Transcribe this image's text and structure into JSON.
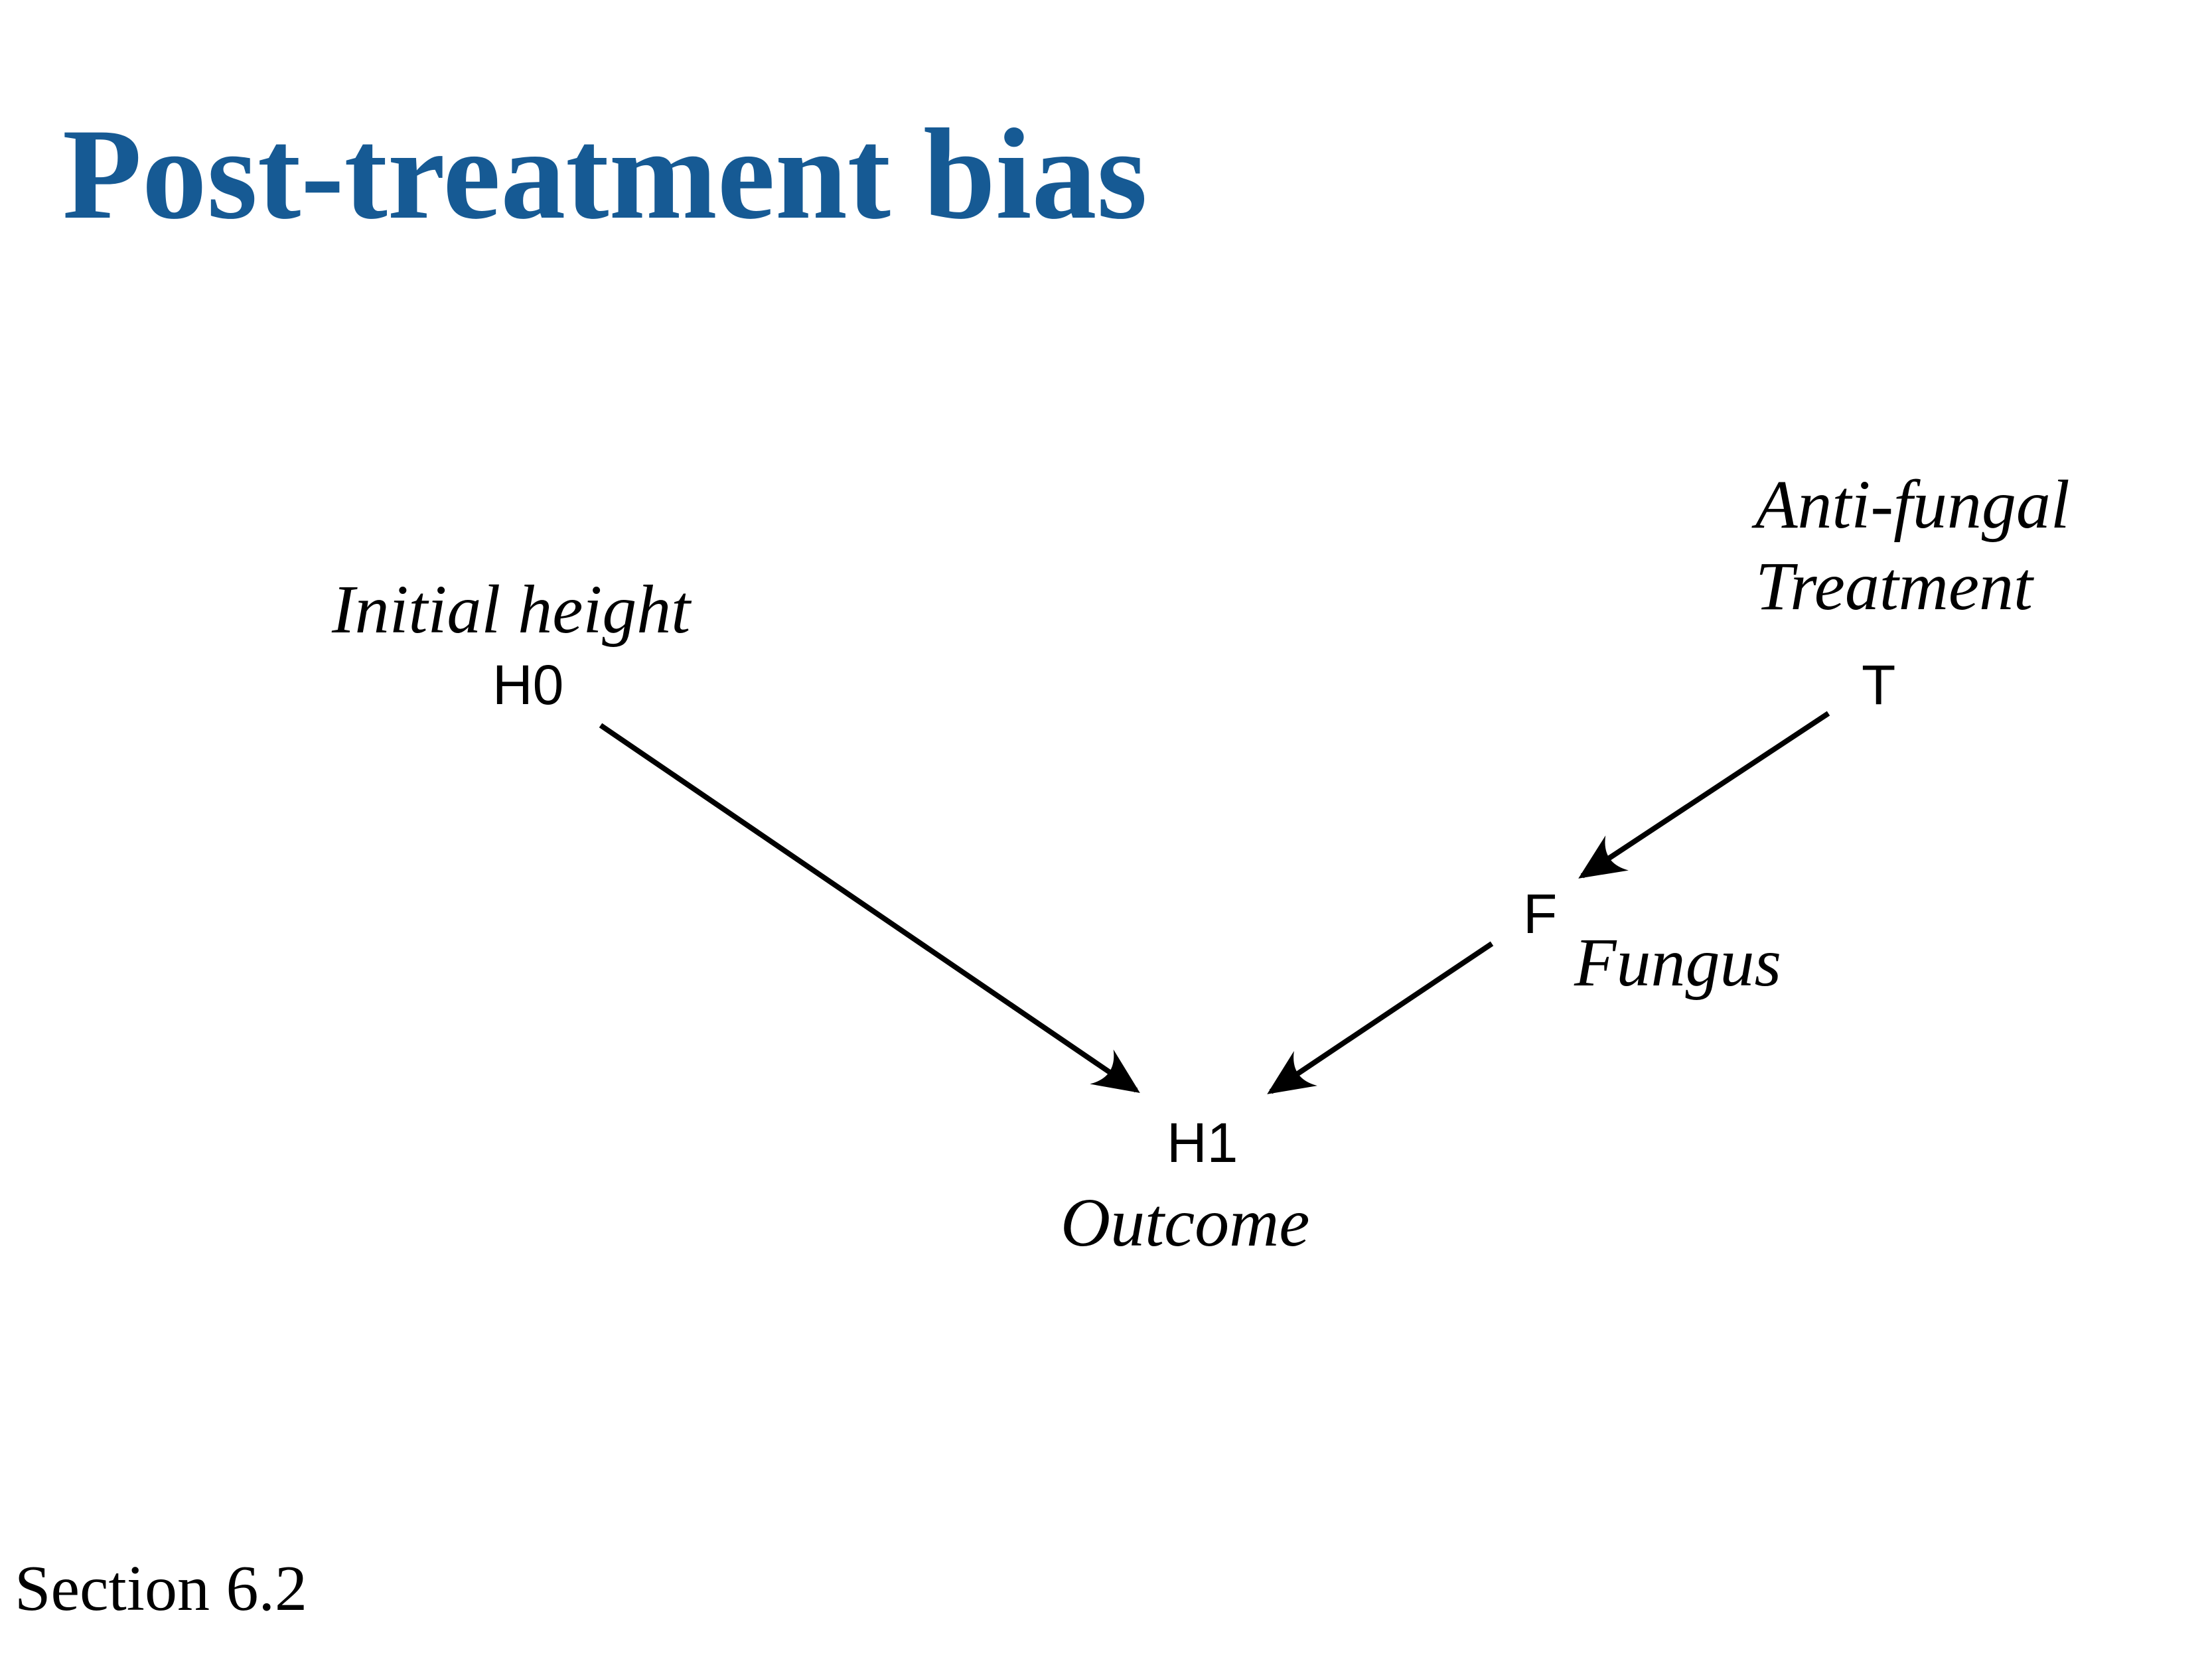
{
  "slide": {
    "title": "Post-treatment bias",
    "footer": "Section 6.2"
  },
  "diagram": {
    "nodes": [
      {
        "id": "H0",
        "label": "H0",
        "caption": "Initial height"
      },
      {
        "id": "T",
        "label": "T",
        "caption_line1": "Anti-fungal",
        "caption_line2": "Treatment"
      },
      {
        "id": "F",
        "label": "F",
        "caption": "Fungus"
      },
      {
        "id": "H1",
        "label": "H1",
        "caption": "Outcome"
      }
    ],
    "edges": [
      {
        "from": "H0",
        "to": "H1"
      },
      {
        "from": "T",
        "to": "F"
      },
      {
        "from": "F",
        "to": "H1"
      }
    ],
    "colors": {
      "title": "#165a94",
      "edge": "#000000"
    }
  }
}
